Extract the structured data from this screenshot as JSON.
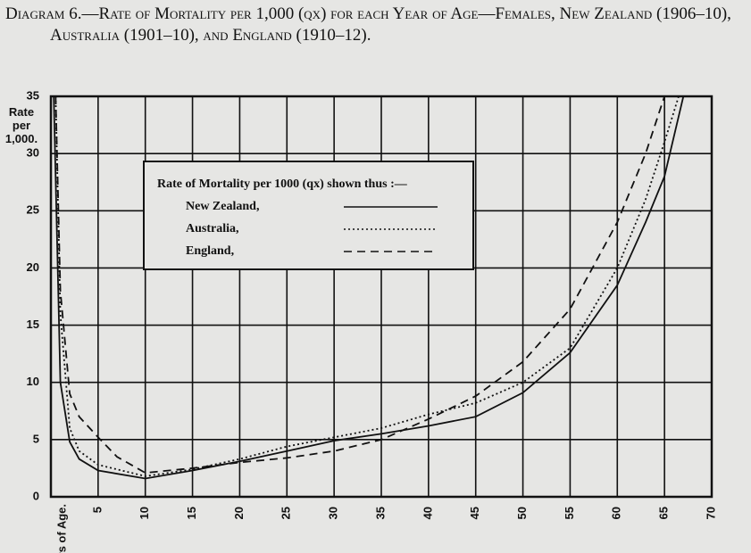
{
  "chart_data": {
    "type": "line",
    "title": "Diagram 6.—Rate of Mortality per 1,000 (qx) for each Year of Age—Females, New Zealand (1906–10), Australia (1901–10), and England (1910–12).",
    "y_label": "Rate per 1,000.",
    "x_label": "Years of Age.",
    "legend_title": "Rate of Mortality per 1000 (qx) shown thus :—",
    "xlim": [
      0,
      70
    ],
    "ylim": [
      0,
      35
    ],
    "xticks": [
      5,
      10,
      15,
      20,
      25,
      30,
      35,
      40,
      45,
      50,
      55,
      60,
      65,
      70
    ],
    "yticks": [
      0,
      5,
      10,
      15,
      20,
      25,
      30,
      35
    ],
    "grid": true,
    "series": [
      {
        "name": "New Zealand,",
        "color": "#111111",
        "style": "solid",
        "x": [
          0.3,
          1,
          2,
          3,
          5,
          10,
          15,
          20,
          25,
          30,
          35,
          40,
          45,
          50,
          55,
          60,
          63,
          65,
          67
        ],
        "values": [
          35,
          10,
          4.8,
          3.3,
          2.3,
          1.6,
          2.3,
          3.1,
          4.0,
          4.9,
          5.5,
          6.2,
          7.0,
          9.1,
          12.6,
          18.5,
          24,
          28,
          35
        ]
      },
      {
        "name": "Australia,",
        "color": "#111111",
        "style": "dotted",
        "x": [
          0.5,
          1,
          2,
          3,
          5,
          10,
          15,
          20,
          25,
          30,
          35,
          40,
          45,
          50,
          55,
          60,
          63,
          65,
          66.5
        ],
        "values": [
          35,
          16,
          6,
          4,
          2.8,
          1.8,
          2.4,
          3.3,
          4.4,
          5.2,
          6.0,
          7.2,
          8.2,
          10.0,
          13.0,
          20.0,
          26,
          31,
          35
        ]
      },
      {
        "name": "England,",
        "color": "#111111",
        "style": "dashed",
        "x": [
          0.5,
          1,
          2,
          3,
          5,
          7,
          10,
          15,
          20,
          25,
          30,
          35,
          40,
          45,
          50,
          55,
          60,
          63,
          65
        ],
        "values": [
          35,
          18,
          9,
          7,
          5.2,
          3.5,
          2.1,
          2.5,
          3.0,
          3.4,
          4.0,
          5.0,
          6.8,
          8.8,
          11.8,
          16.4,
          24.0,
          30,
          35
        ]
      }
    ]
  }
}
